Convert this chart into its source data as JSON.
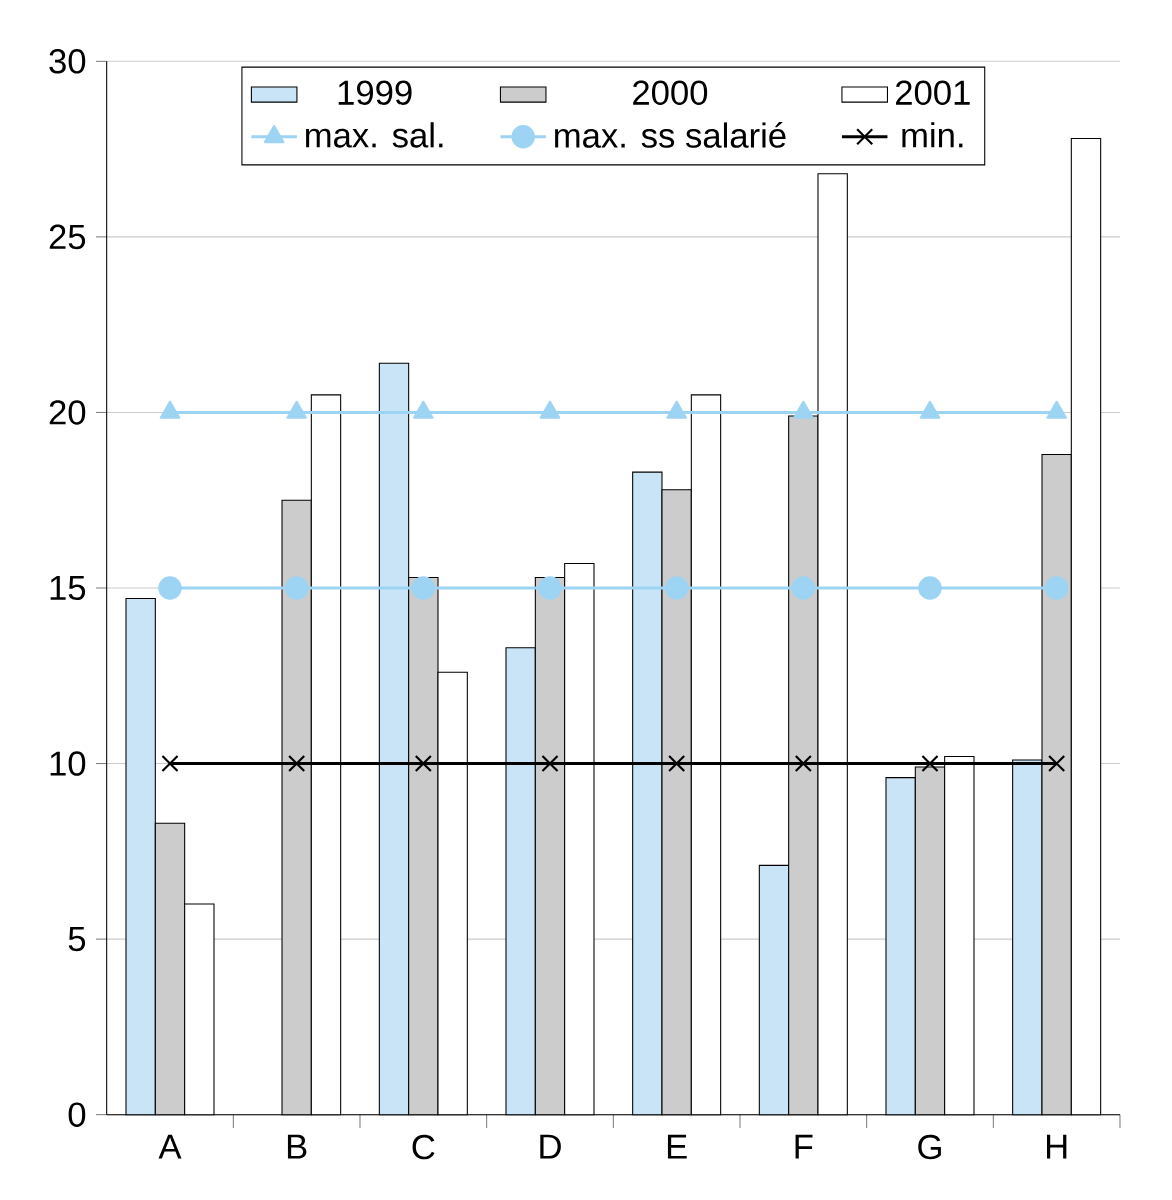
{
  "chart_data": {
    "type": "bar",
    "categories": [
      "A",
      "B",
      "C",
      "D",
      "E",
      "F",
      "G",
      "H"
    ],
    "series": [
      {
        "name": "1999",
        "color": "#c9e4f6",
        "values": [
          14.7,
          null,
          21.4,
          13.3,
          18.3,
          7.1,
          9.6,
          10.1
        ]
      },
      {
        "name": "2000",
        "color": "#cccccc",
        "values": [
          8.3,
          17.5,
          15.3,
          15.3,
          17.8,
          19.9,
          9.9,
          18.8
        ]
      },
      {
        "name": "2001",
        "color": "#ffffff",
        "values": [
          6.0,
          20.5,
          12.6,
          15.7,
          20.5,
          26.8,
          10.2,
          27.8
        ]
      },
      {
        "name": "max. sal.",
        "type": "line",
        "marker": "triangle",
        "color": "#9dd3f3",
        "values": [
          20,
          20,
          20,
          20,
          20,
          20,
          20,
          20
        ]
      },
      {
        "name": "max. ss salarié",
        "type": "line",
        "marker": "circle",
        "color": "#9dd3f3",
        "values": [
          15,
          15,
          15,
          15,
          15,
          15,
          15,
          15
        ]
      },
      {
        "name": "min.",
        "type": "line",
        "marker": "cross",
        "color": "#000000",
        "values": [
          10,
          10,
          10,
          10,
          10,
          10,
          10,
          10
        ]
      }
    ],
    "ylim": [
      0,
      30
    ],
    "yticks": [
      0,
      5,
      10,
      15,
      20,
      25,
      30
    ],
    "grid": "y",
    "legend": "top"
  }
}
